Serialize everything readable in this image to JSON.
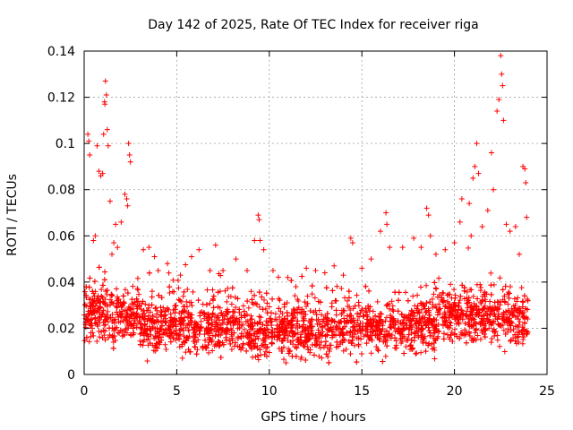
{
  "chart_data": {
    "type": "scatter",
    "title": "Day 142 of 2025, Rate Of TEC Index for receiver riga",
    "xlabel": "GPS time / hours",
    "ylabel": "ROTI / TECUs",
    "xlim": [
      0,
      25
    ],
    "ylim": [
      0,
      0.14
    ],
    "xticks": [
      0,
      5,
      10,
      15,
      20,
      25
    ],
    "xtick_labels": [
      "0",
      "5",
      "10",
      "15",
      "20",
      "25"
    ],
    "yticks": [
      0,
      0.02,
      0.04,
      0.06,
      0.08,
      0.1,
      0.12,
      0.14
    ],
    "ytick_labels": [
      "0",
      "0.02",
      "0.04",
      "0.06",
      "0.08",
      "0.1",
      "0.12",
      "0.14"
    ],
    "grid": true,
    "marker": "+",
    "color": "#ff0000",
    "series": [
      {
        "name": "ROTI",
        "points": [
          [
            0.2,
            0.104
          ],
          [
            0.25,
            0.101
          ],
          [
            0.3,
            0.095
          ],
          [
            0.5,
            0.058
          ],
          [
            0.6,
            0.06
          ],
          [
            0.7,
            0.099
          ],
          [
            0.8,
            0.088
          ],
          [
            0.9,
            0.086
          ],
          [
            1.0,
            0.087
          ],
          [
            1.05,
            0.104
          ],
          [
            1.1,
            0.118
          ],
          [
            1.12,
            0.117
          ],
          [
            1.15,
            0.127
          ],
          [
            1.2,
            0.121
          ],
          [
            1.25,
            0.106
          ],
          [
            1.3,
            0.099
          ],
          [
            1.4,
            0.075
          ],
          [
            1.5,
            0.052
          ],
          [
            1.6,
            0.057
          ],
          [
            1.7,
            0.065
          ],
          [
            1.8,
            0.055
          ],
          [
            2.0,
            0.066
          ],
          [
            2.2,
            0.078
          ],
          [
            2.3,
            0.076
          ],
          [
            2.35,
            0.073
          ],
          [
            2.4,
            0.1
          ],
          [
            2.45,
            0.095
          ],
          [
            2.5,
            0.092
          ],
          [
            3.2,
            0.054
          ],
          [
            3.5,
            0.055
          ],
          [
            3.8,
            0.051
          ],
          [
            4.0,
            0.045
          ],
          [
            4.5,
            0.048
          ],
          [
            5.2,
            0.043
          ],
          [
            5.8,
            0.051
          ],
          [
            6.2,
            0.054
          ],
          [
            6.8,
            0.045
          ],
          [
            7.1,
            0.056
          ],
          [
            7.5,
            0.045
          ],
          [
            8.2,
            0.05
          ],
          [
            8.8,
            0.045
          ],
          [
            9.2,
            0.058
          ],
          [
            9.4,
            0.069
          ],
          [
            9.45,
            0.067
          ],
          [
            9.5,
            0.058
          ],
          [
            9.7,
            0.054
          ],
          [
            10.2,
            0.045
          ],
          [
            11.0,
            0.042
          ],
          [
            12.0,
            0.046
          ],
          [
            12.5,
            0.045
          ],
          [
            13.0,
            0.044
          ],
          [
            13.5,
            0.047
          ],
          [
            14.0,
            0.043
          ],
          [
            14.4,
            0.059
          ],
          [
            14.5,
            0.057
          ],
          [
            15.0,
            0.046
          ],
          [
            15.5,
            0.05
          ],
          [
            16.0,
            0.062
          ],
          [
            16.3,
            0.07
          ],
          [
            16.35,
            0.065
          ],
          [
            16.5,
            0.055
          ],
          [
            17.2,
            0.055
          ],
          [
            17.8,
            0.059
          ],
          [
            18.2,
            0.055
          ],
          [
            18.5,
            0.072
          ],
          [
            18.6,
            0.069
          ],
          [
            18.7,
            0.06
          ],
          [
            19.0,
            0.052
          ],
          [
            19.5,
            0.054
          ],
          [
            20.0,
            0.057
          ],
          [
            20.3,
            0.066
          ],
          [
            20.4,
            0.076
          ],
          [
            20.8,
            0.074
          ],
          [
            20.9,
            0.06
          ],
          [
            21.0,
            0.085
          ],
          [
            21.1,
            0.09
          ],
          [
            21.2,
            0.1
          ],
          [
            21.3,
            0.087
          ],
          [
            21.5,
            0.064
          ],
          [
            21.8,
            0.071
          ],
          [
            22.0,
            0.096
          ],
          [
            22.1,
            0.08
          ],
          [
            22.3,
            0.114
          ],
          [
            22.4,
            0.119
          ],
          [
            22.5,
            0.138
          ],
          [
            22.55,
            0.13
          ],
          [
            22.6,
            0.125
          ],
          [
            22.65,
            0.11
          ],
          [
            22.8,
            0.065
          ],
          [
            23.0,
            0.062
          ],
          [
            23.3,
            0.064
          ],
          [
            23.5,
            0.052
          ],
          [
            23.7,
            0.09
          ],
          [
            23.8,
            0.089
          ],
          [
            23.85,
            0.083
          ],
          [
            23.9,
            0.068
          ]
        ]
      }
    ]
  }
}
